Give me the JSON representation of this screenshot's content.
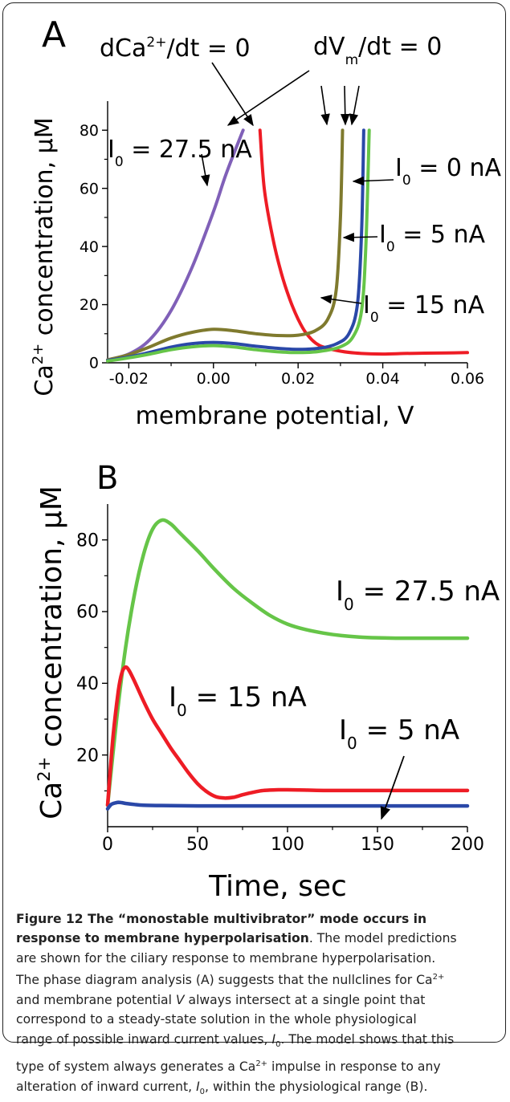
{
  "chart_data": [
    {
      "panel_label": "A",
      "type": "line",
      "xlabel": "membrane potential, V",
      "ylabel_parts": [
        "Ca",
        "2+",
        " concentration, ",
        "μM"
      ],
      "xlim": [
        -0.025,
        0.06
      ],
      "ylim": [
        0,
        90
      ],
      "xticks": [
        -0.02,
        0.0,
        0.02,
        0.04,
        0.06
      ],
      "xtick_labels": [
        "-0.02",
        "0.00",
        "0.02",
        "0.04",
        "0.06"
      ],
      "yticks": [
        0,
        20,
        40,
        60,
        80
      ],
      "ytick_labels": [
        "0",
        "20",
        "40",
        "60",
        "80"
      ],
      "series": [
        {
          "color": "#8060b8",
          "x": [
            -0.025,
            -0.02,
            -0.015,
            -0.01,
            -0.005,
            0.0,
            0.003,
            0.007
          ],
          "y": [
            1,
            3,
            8,
            18,
            33,
            52,
            65,
            80
          ]
        },
        {
          "color": "#ee1c25",
          "x": [
            0.011,
            0.012,
            0.014,
            0.016,
            0.018,
            0.02,
            0.022,
            0.025,
            0.03,
            0.035,
            0.04,
            0.045,
            0.05,
            0.055,
            0.06
          ],
          "y": [
            80,
            60,
            43,
            31,
            22,
            15,
            10,
            6,
            4,
            3.2,
            3,
            3.2,
            3.3,
            3.4,
            3.5
          ]
        },
        {
          "color": "#7f7a2e",
          "x": [
            -0.025,
            -0.02,
            -0.015,
            -0.01,
            -0.005,
            0.0,
            0.005,
            0.01,
            0.015,
            0.02,
            0.024,
            0.027,
            0.029,
            0.03,
            0.0305
          ],
          "y": [
            1,
            2.8,
            5.5,
            8.5,
            10.5,
            11.5,
            11,
            10,
            9.4,
            9.5,
            11,
            15,
            25,
            50,
            80
          ]
        },
        {
          "color": "#2a48a8",
          "x": [
            -0.025,
            -0.02,
            -0.015,
            -0.01,
            -0.005,
            0.0,
            0.005,
            0.01,
            0.015,
            0.02,
            0.025,
            0.029,
            0.032,
            0.034,
            0.035,
            0.0355
          ],
          "y": [
            0.8,
            2,
            3.6,
            5.4,
            6.6,
            7,
            6.6,
            5.7,
            5,
            4.6,
            5,
            6.5,
            10,
            20,
            45,
            80
          ]
        },
        {
          "color": "#66c548",
          "x": [
            -0.025,
            -0.02,
            -0.015,
            -0.01,
            -0.005,
            0.0,
            0.005,
            0.01,
            0.015,
            0.02,
            0.025,
            0.03,
            0.033,
            0.035,
            0.036,
            0.0368
          ],
          "y": [
            0.6,
            1.7,
            3,
            4.5,
            5.5,
            5.9,
            5.4,
            4.5,
            3.8,
            3.5,
            3.9,
            5.5,
            9,
            18,
            40,
            80
          ]
        }
      ],
      "annotations": {
        "ca_nullcline": {
          "base": "dCa",
          "sup": "2+",
          "rest": "/dt = 0"
        },
        "v_nullcline": {
          "base": "dV",
          "sub": "m",
          "rest": "/dt = 0"
        },
        "i0_275": {
          "base": "I",
          "sub": "0",
          "rest": " = 27.5 nA"
        },
        "i0_0": {
          "base": "I",
          "sub": "0",
          "rest": " = 0 nA"
        },
        "i0_5": {
          "base": "I",
          "sub": "0",
          "rest": " = 5 nA"
        },
        "i0_15": {
          "base": "I",
          "sub": "0",
          "rest": " = 15 nA"
        }
      }
    },
    {
      "panel_label": "B",
      "type": "line",
      "xlabel": "Time, sec",
      "ylabel_parts": [
        "Ca",
        "2+",
        " concentration, ",
        "μM"
      ],
      "xlim": [
        0,
        200
      ],
      "ylim": [
        0,
        90
      ],
      "xticks": [
        0,
        50,
        100,
        150,
        200
      ],
      "xtick_labels": [
        "0",
        "50",
        "100",
        "150",
        "200"
      ],
      "yticks": [
        20,
        40,
        60,
        80
      ],
      "ytick_labels": [
        "20",
        "40",
        "60",
        "80"
      ],
      "series": [
        {
          "color": "#66c548",
          "x": [
            0,
            5,
            10,
            15,
            20,
            25,
            30,
            35,
            40,
            50,
            60,
            70,
            80,
            90,
            100,
            110,
            120,
            130,
            140,
            150,
            160,
            170,
            180,
            190,
            200
          ],
          "y": [
            6,
            30,
            50,
            65,
            76,
            83,
            85.5,
            84.5,
            82,
            77,
            71.5,
            66.5,
            62.5,
            59,
            56.5,
            55,
            54,
            53.3,
            52.9,
            52.7,
            52.6,
            52.6,
            52.6,
            52.6,
            52.6
          ]
        },
        {
          "color": "#ee1c25",
          "x": [
            0,
            3,
            6,
            8,
            10,
            12,
            15,
            20,
            25,
            30,
            35,
            40,
            45,
            50,
            55,
            60,
            65,
            70,
            75,
            80,
            85,
            90,
            95,
            100,
            110,
            120,
            140,
            160,
            180,
            200
          ],
          "y": [
            6,
            25,
            38,
            43,
            44.5,
            43.5,
            40.5,
            35,
            30,
            26,
            22,
            18.5,
            15,
            12,
            9.8,
            8.4,
            8,
            8.2,
            8.9,
            9.5,
            10,
            10.2,
            10.3,
            10.3,
            10.2,
            10.1,
            10.1,
            10.1,
            10.1,
            10.1
          ]
        },
        {
          "color": "#2a48a8",
          "x": [
            0,
            2,
            4,
            6,
            8,
            10,
            15,
            20,
            30,
            50,
            80,
            120,
            160,
            200
          ],
          "y": [
            5,
            6.2,
            6.6,
            6.8,
            6.7,
            6.5,
            6.2,
            6,
            5.9,
            5.8,
            5.8,
            5.8,
            5.8,
            5.8
          ]
        }
      ],
      "annotations": {
        "i0_275": {
          "base": "I",
          "sub": "0",
          "rest": " = 27.5 nA"
        },
        "i0_15": {
          "base": "I",
          "sub": "0",
          "rest": " = 15 nA"
        },
        "i0_5": {
          "base": "I",
          "sub": "0",
          "rest": " = 5 nA"
        }
      }
    }
  ],
  "caption": {
    "bold_lines": [
      "Figure 12 The “monostable multivibrator” mode occurs in",
      "response to membrane hyperpolarisation"
    ],
    "line2_rest": ". The model predictions",
    "lines": [
      "are shown for the ciliary response to membrane hyperpolarisation.",
      "and membrane potential ",
      " always intersect at a single point that",
      "correspond to a steady-state solution in the whole physiological",
      "range of possible inward current values, ",
      ". The model shows that this",
      "type of system always generates a Ca",
      " impulse in response to any",
      "alteration of inward current, ",
      ", within the physiological range (B)."
    ],
    "line4_start": "The phase diagram analysis (A) suggests that the nullclines for Ca",
    "sup": "2+",
    "var_v": "V",
    "var_i": "I",
    "sub_i": "0"
  }
}
